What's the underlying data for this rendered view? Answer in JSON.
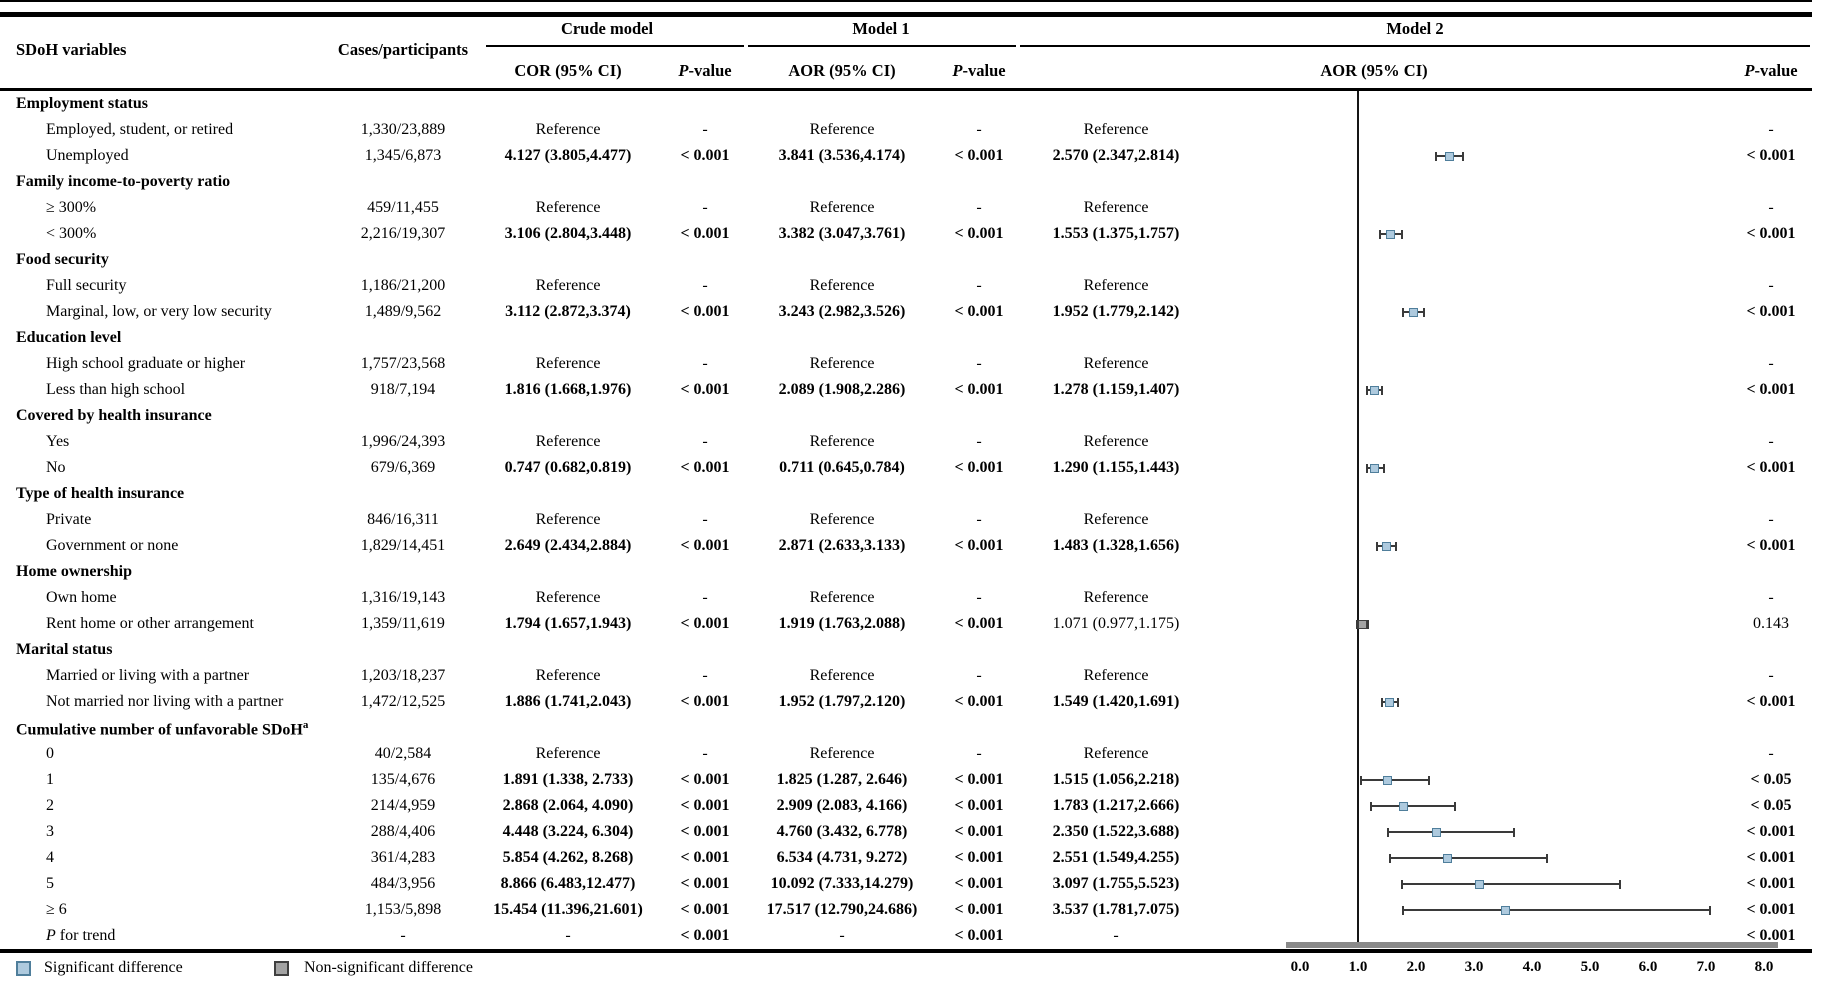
{
  "header": {
    "sdoh": "SDoH variables",
    "cases": "Cases/participants",
    "crude": "Crude model",
    "model1": "Model 1",
    "model2": "Model 2",
    "cor": "COR (95% CI)",
    "aor": "AOR (95% CI)",
    "pvalue": "P-value"
  },
  "rows": [
    {
      "t": "cat",
      "label": "Employment status"
    },
    {
      "t": "item",
      "label": "Employed, student, or retired",
      "cases": "1,330/23,889",
      "cor": "Reference",
      "pc": "-",
      "aor1": "Reference",
      "p1": "-",
      "aor2": "Reference",
      "p2": "-"
    },
    {
      "t": "item",
      "label": "Unemployed",
      "cases": "1,345/6,873",
      "cor": "4.127 (3.805,4.477)",
      "pc": "< 0.001",
      "aor1": "3.841 (3.536,4.174)",
      "p1": "< 0.001",
      "aor2": "2.570 (2.347,2.814)",
      "p2": "< 0.001",
      "est": 2.57,
      "lo": 2.347,
      "hi": 2.814,
      "sig": true
    },
    {
      "t": "cat",
      "label": "Family income-to-poverty ratio"
    },
    {
      "t": "item",
      "label": "≥ 300%",
      "cases": "459/11,455",
      "cor": "Reference",
      "pc": "-",
      "aor1": "Reference",
      "p1": "-",
      "aor2": "Reference",
      "p2": "-"
    },
    {
      "t": "item",
      "label": "< 300%",
      "cases": "2,216/19,307",
      "cor": "3.106 (2.804,3.448)",
      "pc": "< 0.001",
      "aor1": "3.382 (3.047,3.761)",
      "p1": "< 0.001",
      "aor2": "1.553 (1.375,1.757)",
      "p2": "< 0.001",
      "est": 1.553,
      "lo": 1.375,
      "hi": 1.757,
      "sig": true
    },
    {
      "t": "cat",
      "label": "Food security"
    },
    {
      "t": "item",
      "label": "Full security",
      "cases": "1,186/21,200",
      "cor": "Reference",
      "pc": "-",
      "aor1": "Reference",
      "p1": "-",
      "aor2": "Reference",
      "p2": "-"
    },
    {
      "t": "item",
      "label": "Marginal, low, or very low security",
      "cases": "1,489/9,562",
      "cor": "3.112 (2.872,3.374)",
      "pc": "< 0.001",
      "aor1": "3.243 (2.982,3.526)",
      "p1": "< 0.001",
      "aor2": "1.952 (1.779,2.142)",
      "p2": "< 0.001",
      "est": 1.952,
      "lo": 1.779,
      "hi": 2.142,
      "sig": true
    },
    {
      "t": "cat",
      "label": "Education level"
    },
    {
      "t": "item",
      "label": "High school graduate or higher",
      "cases": "1,757/23,568",
      "cor": "Reference",
      "pc": "-",
      "aor1": "Reference",
      "p1": "-",
      "aor2": "Reference",
      "p2": "-"
    },
    {
      "t": "item",
      "label": "Less than high school",
      "cases": "918/7,194",
      "cor": "1.816 (1.668,1.976)",
      "pc": "< 0.001",
      "aor1": "2.089 (1.908,2.286)",
      "p1": "< 0.001",
      "aor2": "1.278 (1.159,1.407)",
      "p2": "< 0.001",
      "est": 1.278,
      "lo": 1.159,
      "hi": 1.407,
      "sig": true
    },
    {
      "t": "cat",
      "label": "Covered by health insurance"
    },
    {
      "t": "item",
      "label": "Yes",
      "cases": "1,996/24,393",
      "cor": "Reference",
      "pc": "-",
      "aor1": "Reference",
      "p1": "-",
      "aor2": "Reference",
      "p2": "-"
    },
    {
      "t": "item",
      "label": "No",
      "cases": "679/6,369",
      "cor": "0.747 (0.682,0.819)",
      "pc": "< 0.001",
      "aor1": "0.711 (0.645,0.784)",
      "p1": "< 0.001",
      "aor2": "1.290 (1.155,1.443)",
      "p2": "< 0.001",
      "est": 1.29,
      "lo": 1.155,
      "hi": 1.443,
      "sig": true
    },
    {
      "t": "cat",
      "label": "Type of health insurance"
    },
    {
      "t": "item",
      "label": "Private",
      "cases": "846/16,311",
      "cor": "Reference",
      "pc": "-",
      "aor1": "Reference",
      "p1": "-",
      "aor2": "Reference",
      "p2": "-"
    },
    {
      "t": "item",
      "label": "Government or none",
      "cases": "1,829/14,451",
      "cor": "2.649 (2.434,2.884)",
      "pc": "< 0.001",
      "aor1": "2.871 (2.633,3.133)",
      "p1": "< 0.001",
      "aor2": "1.483 (1.328,1.656)",
      "p2": "< 0.001",
      "est": 1.483,
      "lo": 1.328,
      "hi": 1.656,
      "sig": true
    },
    {
      "t": "cat",
      "label": "Home ownership"
    },
    {
      "t": "item",
      "label": "Own home",
      "cases": "1,316/19,143",
      "cor": "Reference",
      "pc": "-",
      "aor1": "Reference",
      "p1": "-",
      "aor2": "Reference",
      "p2": "-"
    },
    {
      "t": "item",
      "label": "Rent home or other arrangement",
      "cases": "1,359/11,619",
      "cor": "1.794 (1.657,1.943)",
      "pc": "< 0.001",
      "aor1": "1.919 (1.763,2.088)",
      "p1": "< 0.001",
      "aor2": "1.071 (0.977,1.175)",
      "p2": "0.143",
      "m2_plain": true,
      "est": 1.071,
      "lo": 0.977,
      "hi": 1.175,
      "sig": false
    },
    {
      "t": "cat",
      "label": "Marital status"
    },
    {
      "t": "item",
      "label": "Married or living with a partner",
      "cases": "1,203/18,237",
      "cor": "Reference",
      "pc": "-",
      "aor1": "Reference",
      "p1": "-",
      "aor2": "Reference",
      "p2": "-"
    },
    {
      "t": "item",
      "label": "Not married nor living with a partner",
      "cases": "1,472/12,525",
      "cor": "1.886 (1.741,2.043)",
      "pc": "< 0.001",
      "aor1": "1.952 (1.797,2.120)",
      "p1": "< 0.001",
      "aor2": "1.549 (1.420,1.691)",
      "p2": "< 0.001",
      "est": 1.549,
      "lo": 1.42,
      "hi": 1.691,
      "sig": true
    },
    {
      "t": "cat",
      "label": "Cumulative number of unfavorable SDoH",
      "sup": "a"
    },
    {
      "t": "item",
      "label": "0",
      "cases": "40/2,584",
      "cor": "Reference",
      "pc": "-",
      "aor1": "Reference",
      "p1": "-",
      "aor2": "Reference",
      "p2": "-"
    },
    {
      "t": "item",
      "label": "1",
      "cases": "135/4,676",
      "cor": "1.891 (1.338, 2.733)",
      "pc": "< 0.001",
      "aor1": "1.825 (1.287, 2.646)",
      "p1": "< 0.001",
      "aor2": "1.515 (1.056,2.218)",
      "p2": "< 0.05",
      "est": 1.515,
      "lo": 1.056,
      "hi": 2.218,
      "sig": true
    },
    {
      "t": "item",
      "label": "2",
      "cases": "214/4,959",
      "cor": "2.868 (2.064, 4.090)",
      "pc": "< 0.001",
      "aor1": "2.909 (2.083, 4.166)",
      "p1": "< 0.001",
      "aor2": "1.783 (1.217,2.666)",
      "p2": "< 0.05",
      "est": 1.783,
      "lo": 1.217,
      "hi": 2.666,
      "sig": true
    },
    {
      "t": "item",
      "label": "3",
      "cases": "288/4,406",
      "cor": "4.448 (3.224, 6.304)",
      "pc": "< 0.001",
      "aor1": "4.760 (3.432, 6.778)",
      "p1": "< 0.001",
      "aor2": "2.350 (1.522,3.688)",
      "p2": "< 0.001",
      "est": 2.35,
      "lo": 1.522,
      "hi": 3.688,
      "sig": true
    },
    {
      "t": "item",
      "label": "4",
      "cases": "361/4,283",
      "cor": "5.854 (4.262, 8.268)",
      "pc": "< 0.001",
      "aor1": "6.534 (4.731, 9.272)",
      "p1": "< 0.001",
      "aor2": "2.551 (1.549,4.255)",
      "p2": "< 0.001",
      "est": 2.551,
      "lo": 1.549,
      "hi": 4.255,
      "sig": true
    },
    {
      "t": "item",
      "label": "5",
      "cases": "484/3,956",
      "cor": "8.866 (6.483,12.477)",
      "pc": "< 0.001",
      "aor1": "10.092 (7.333,14.279)",
      "p1": "< 0.001",
      "aor2": "3.097 (1.755,5.523)",
      "p2": "< 0.001",
      "est": 3.097,
      "lo": 1.755,
      "hi": 5.523,
      "sig": true
    },
    {
      "t": "item",
      "label": "≥ 6",
      "cases": "1,153/5,898",
      "cor": "15.454 (11.396,21.601)",
      "pc": "< 0.001",
      "aor1": "17.517 (12.790,24.686)",
      "p1": "< 0.001",
      "aor2": "3.537 (1.781,7.075)",
      "p2": "< 0.001",
      "est": 3.537,
      "lo": 1.781,
      "hi": 7.075,
      "sig": true
    },
    {
      "t": "trend",
      "label": "P for trend",
      "cases": "-",
      "cor": "-",
      "pc": "< 0.001",
      "aor1": "-",
      "p1": "< 0.001",
      "aor2": "-",
      "p2": "< 0.001"
    }
  ],
  "axis": {
    "ticks": [
      "0.0",
      "1.0",
      "2.0",
      "3.0",
      "4.0",
      "5.0",
      "6.0",
      "7.0",
      "8.0"
    ],
    "min": 0,
    "max": 8,
    "ref": 1
  },
  "legend": {
    "sig": "Significant difference",
    "nonsig": "Non-significant difference"
  },
  "colors": {
    "sig_fill": "#aecade",
    "sig_border": "#4f7e9b",
    "nonsig_fill": "#a3a3a3",
    "nonsig_border": "#3f3f3f",
    "error_bar": "#3a3a3a",
    "axis_bar": "#8a8a8a",
    "rule": "#000000"
  }
}
